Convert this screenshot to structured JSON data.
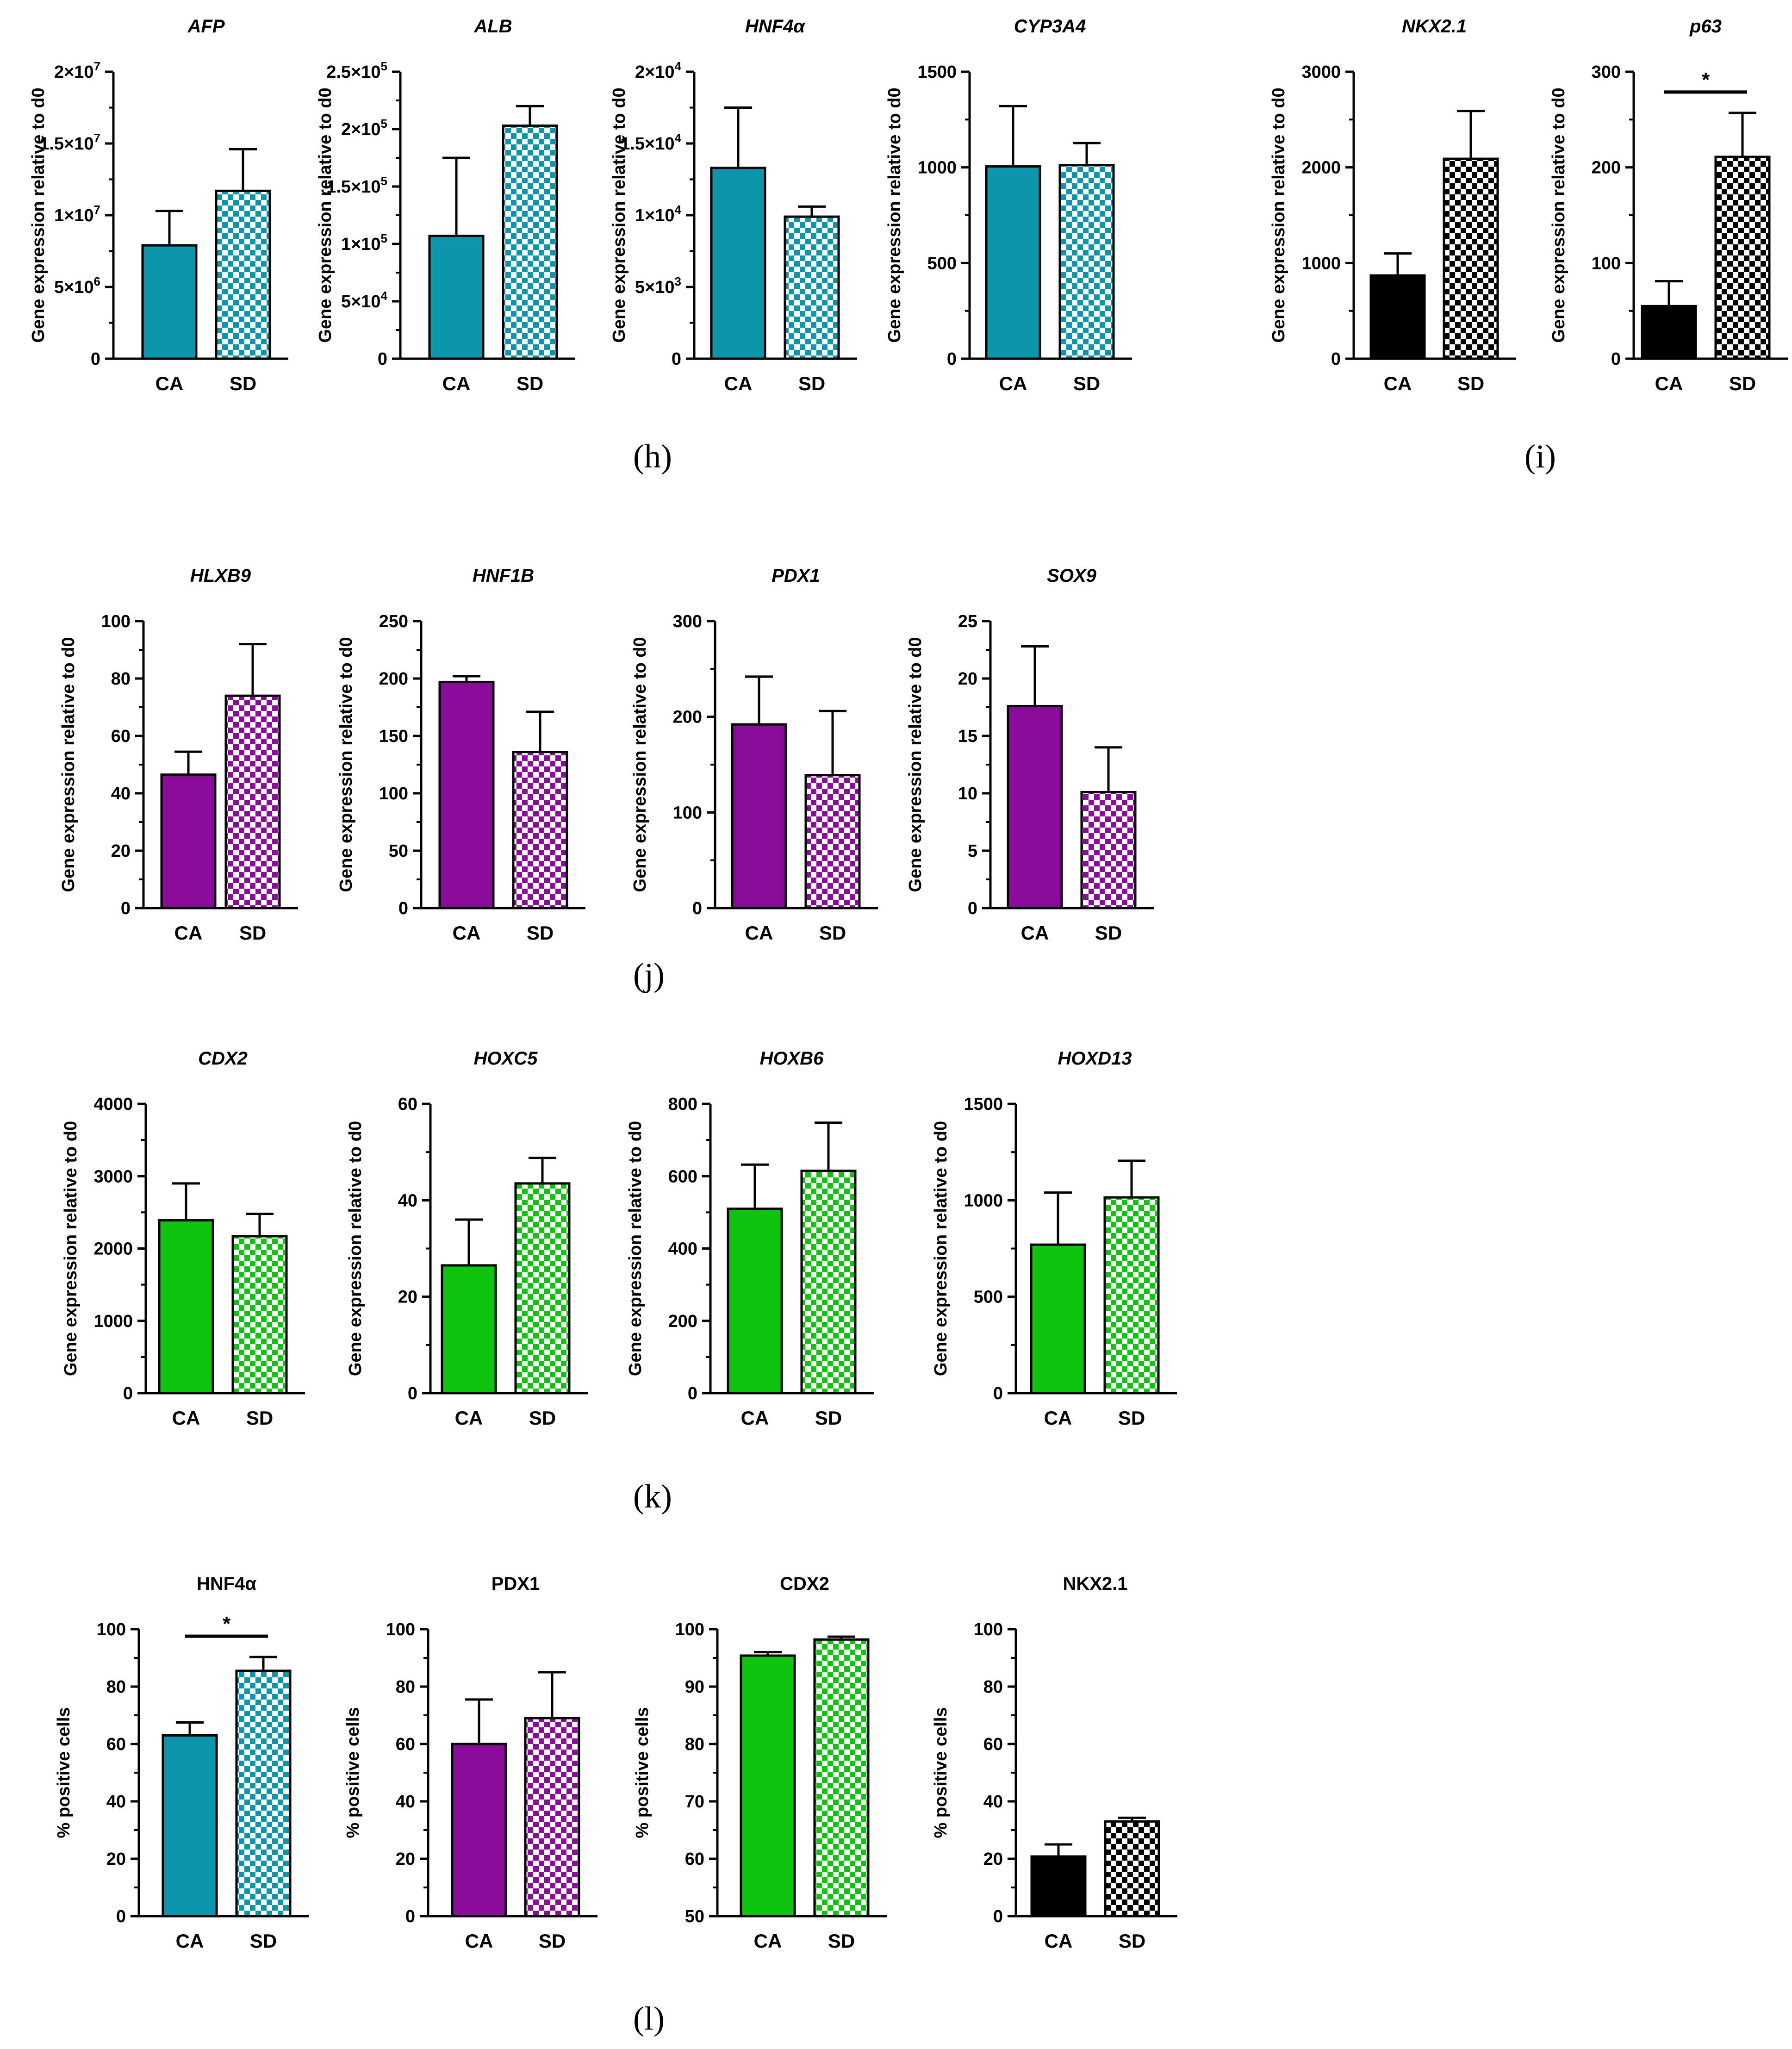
{
  "figure": {
    "panel_labels": [
      "(h)",
      "(i)",
      "(j)",
      "(k)",
      "(l)"
    ]
  },
  "colors": {
    "teal": "#0a97ae",
    "black": "#000000",
    "purple": "#8a0a9a",
    "green": "#0ec40e"
  },
  "chart_data": [
    {
      "id": "afp",
      "type": "bar",
      "title": "AFP",
      "title_italic": true,
      "ylabel": "Gene expression relative to d0",
      "categories": [
        "CA",
        "SD"
      ],
      "values": [
        7900000,
        11700000
      ],
      "errors": [
        2400000,
        2900000
      ],
      "ylim": [
        0,
        20000000
      ],
      "yticks": [
        0,
        5000000,
        10000000,
        15000000,
        20000000
      ],
      "ytick_labels": [
        "0",
        "5×10^6",
        "1×10^7",
        "1.5×10^7",
        "2×10^7"
      ],
      "color": "teal",
      "significance": null
    },
    {
      "id": "alb",
      "type": "bar",
      "title": "ALB",
      "title_italic": true,
      "ylabel": "Gene expression relative to d0",
      "categories": [
        "CA",
        "SD"
      ],
      "values": [
        107000,
        203000
      ],
      "errors": [
        68000,
        17000
      ],
      "ylim": [
        0,
        250000
      ],
      "yticks": [
        0,
        50000,
        100000,
        150000,
        200000,
        250000
      ],
      "ytick_labels": [
        "0",
        "5×10^4",
        "1×10^5",
        "1.5×10^5",
        "2×10^5",
        "2.5×10^5"
      ],
      "color": "teal",
      "significance": null
    },
    {
      "id": "hnf4a",
      "type": "bar",
      "title": "HNF4α",
      "title_italic": true,
      "ylabel": "Gene expression relative to d0",
      "categories": [
        "CA",
        "SD"
      ],
      "values": [
        13300,
        9900
      ],
      "errors": [
        4200,
        700
      ],
      "ylim": [
        0,
        20000
      ],
      "yticks": [
        0,
        5000,
        10000,
        15000,
        20000
      ],
      "ytick_labels": [
        "0",
        "5×10^3",
        "1×10^4",
        "1.5×10^4",
        "2×10^4"
      ],
      "color": "teal",
      "significance": null
    },
    {
      "id": "cyp3a4",
      "type": "bar",
      "title": "CYP3A4",
      "title_italic": true,
      "ylabel": "Gene expression relative to d0",
      "categories": [
        "CA",
        "SD"
      ],
      "values": [
        1005,
        1012
      ],
      "errors": [
        315,
        115
      ],
      "ylim": [
        0,
        1500
      ],
      "yticks": [
        0,
        500,
        1000,
        1500
      ],
      "ytick_labels": [
        "0",
        "500",
        "1000",
        "1500"
      ],
      "color": "teal",
      "significance": null
    },
    {
      "id": "nkx21",
      "type": "bar",
      "title": "NKX2.1",
      "title_italic": true,
      "ylabel": "Gene expression relative to d0",
      "categories": [
        "CA",
        "SD"
      ],
      "values": [
        870,
        2090
      ],
      "errors": [
        230,
        500
      ],
      "ylim": [
        0,
        3000
      ],
      "yticks": [
        0,
        1000,
        2000,
        3000
      ],
      "ytick_labels": [
        "0",
        "1000",
        "2000",
        "3000"
      ],
      "color": "black",
      "significance": null
    },
    {
      "id": "p63",
      "type": "bar",
      "title": "p63",
      "title_italic": true,
      "ylabel": "Gene expression relative to d0",
      "categories": [
        "CA",
        "SD"
      ],
      "values": [
        55,
        211
      ],
      "errors": [
        26,
        46
      ],
      "ylim": [
        0,
        300
      ],
      "yticks": [
        0,
        100,
        200,
        300
      ],
      "ytick_labels": [
        "0",
        "100",
        "200",
        "300"
      ],
      "color": "black",
      "significance": "*"
    },
    {
      "id": "hlxb9",
      "type": "bar",
      "title": "HLXB9",
      "title_italic": true,
      "ylabel": "Gene expression relative to d0",
      "categories": [
        "CA",
        "SD"
      ],
      "values": [
        46.5,
        74
      ],
      "errors": [
        8,
        18
      ],
      "ylim": [
        0,
        100
      ],
      "yticks": [
        0,
        20,
        40,
        60,
        80,
        100
      ],
      "ytick_labels": [
        "0",
        "20",
        "40",
        "60",
        "80",
        "100"
      ],
      "color": "purple",
      "significance": null
    },
    {
      "id": "hnf1b",
      "type": "bar",
      "title": "HNF1B",
      "title_italic": true,
      "ylabel": "Gene expression relative to d0",
      "categories": [
        "CA",
        "SD"
      ],
      "values": [
        197,
        136
      ],
      "errors": [
        5,
        35
      ],
      "ylim": [
        0,
        250
      ],
      "yticks": [
        0,
        50,
        100,
        150,
        200,
        250
      ],
      "ytick_labels": [
        "0",
        "50",
        "100",
        "150",
        "200",
        "250"
      ],
      "color": "purple",
      "significance": null
    },
    {
      "id": "pdx1",
      "type": "bar",
      "title": "PDX1",
      "title_italic": true,
      "ylabel": "Gene expression relative to d0",
      "categories": [
        "CA",
        "SD"
      ],
      "values": [
        192,
        139
      ],
      "errors": [
        50,
        67
      ],
      "ylim": [
        0,
        300
      ],
      "yticks": [
        0,
        100,
        200,
        300
      ],
      "ytick_labels": [
        "0",
        "100",
        "200",
        "300"
      ],
      "color": "purple",
      "significance": null
    },
    {
      "id": "sox9",
      "type": "bar",
      "title": "SOX9",
      "title_italic": true,
      "ylabel": "Gene expression relative to d0",
      "categories": [
        "CA",
        "SD"
      ],
      "values": [
        17.6,
        10.1
      ],
      "errors": [
        5.2,
        3.9
      ],
      "ylim": [
        0,
        25
      ],
      "yticks": [
        0,
        5,
        10,
        15,
        20,
        25
      ],
      "ytick_labels": [
        "0",
        "5",
        "10",
        "15",
        "20",
        "25"
      ],
      "color": "purple",
      "significance": null
    },
    {
      "id": "cdx2",
      "type": "bar",
      "title": "CDX2",
      "title_italic": true,
      "ylabel": "Gene expression relative to d0",
      "categories": [
        "CA",
        "SD"
      ],
      "values": [
        2390,
        2170
      ],
      "errors": [
        510,
        310
      ],
      "ylim": [
        0,
        4000
      ],
      "yticks": [
        0,
        1000,
        2000,
        3000,
        4000
      ],
      "ytick_labels": [
        "0",
        "1000",
        "2000",
        "3000",
        "4000"
      ],
      "color": "green",
      "significance": null
    },
    {
      "id": "hoxc5",
      "type": "bar",
      "title": "HOXC5",
      "title_italic": true,
      "ylabel": "Gene expression relative to d0",
      "categories": [
        "CA",
        "SD"
      ],
      "values": [
        26.5,
        43.5
      ],
      "errors": [
        9.5,
        5.3
      ],
      "ylim": [
        0,
        60
      ],
      "yticks": [
        0,
        20,
        40,
        60
      ],
      "ytick_labels": [
        "0",
        "20",
        "40",
        "60"
      ],
      "color": "green",
      "significance": null
    },
    {
      "id": "hoxb6",
      "type": "bar",
      "title": "HOXB6",
      "title_italic": true,
      "ylabel": "Gene expression relative to d0",
      "categories": [
        "CA",
        "SD"
      ],
      "values": [
        510,
        615
      ],
      "errors": [
        122,
        133
      ],
      "ylim": [
        0,
        800
      ],
      "yticks": [
        0,
        200,
        400,
        600,
        800
      ],
      "ytick_labels": [
        "0",
        "200",
        "400",
        "600",
        "800"
      ],
      "color": "green",
      "significance": null
    },
    {
      "id": "hoxd13",
      "type": "bar",
      "title": "HOXD13",
      "title_italic": true,
      "ylabel": "Gene expression relative to d0",
      "categories": [
        "CA",
        "SD"
      ],
      "values": [
        770,
        1015
      ],
      "errors": [
        270,
        190
      ],
      "ylim": [
        0,
        1500
      ],
      "yticks": [
        0,
        500,
        1000,
        1500
      ],
      "ytick_labels": [
        "0",
        "500",
        "1000",
        "1500"
      ],
      "color": "green",
      "significance": null
    },
    {
      "id": "pct_hnf4a",
      "type": "bar",
      "title": "HNF4α",
      "title_italic": false,
      "ylabel": "% positive cells",
      "categories": [
        "CA",
        "SD"
      ],
      "values": [
        63,
        85.5
      ],
      "errors": [
        4.5,
        4.8
      ],
      "ylim": [
        0,
        100
      ],
      "yticks": [
        0,
        20,
        40,
        60,
        80,
        100
      ],
      "ytick_labels": [
        "0",
        "20",
        "40",
        "60",
        "80",
        "100"
      ],
      "color": "teal",
      "significance": "*"
    },
    {
      "id": "pct_pdx1",
      "type": "bar",
      "title": "PDX1",
      "title_italic": false,
      "ylabel": "% positive cells",
      "categories": [
        "CA",
        "SD"
      ],
      "values": [
        60,
        69
      ],
      "errors": [
        15.5,
        16
      ],
      "ylim": [
        0,
        100
      ],
      "yticks": [
        0,
        20,
        40,
        60,
        80,
        100
      ],
      "ytick_labels": [
        "0",
        "20",
        "40",
        "60",
        "80",
        "100"
      ],
      "color": "purple",
      "significance": null
    },
    {
      "id": "pct_cdx2",
      "type": "bar",
      "title": "CDX2",
      "title_italic": false,
      "ylabel": "% positive cells",
      "categories": [
        "CA",
        "SD"
      ],
      "values": [
        95.4,
        98.2
      ],
      "errors": [
        0.6,
        0.5
      ],
      "ylim": [
        50,
        100
      ],
      "yticks": [
        50,
        60,
        70,
        80,
        90,
        100
      ],
      "ytick_labels": [
        "50",
        "60",
        "70",
        "80",
        "90",
        "100"
      ],
      "color": "green",
      "significance": null
    },
    {
      "id": "pct_nkx21",
      "type": "bar",
      "title": "NKX2.1",
      "title_italic": false,
      "ylabel": "% positive cells",
      "categories": [
        "CA",
        "SD"
      ],
      "values": [
        20.8,
        33
      ],
      "errors": [
        4.2,
        1.3
      ],
      "ylim": [
        0,
        100
      ],
      "yticks": [
        0,
        20,
        40,
        60,
        80,
        100
      ],
      "ytick_labels": [
        "0",
        "20",
        "40",
        "60",
        "80",
        "100"
      ],
      "color": "black",
      "significance": null
    }
  ]
}
